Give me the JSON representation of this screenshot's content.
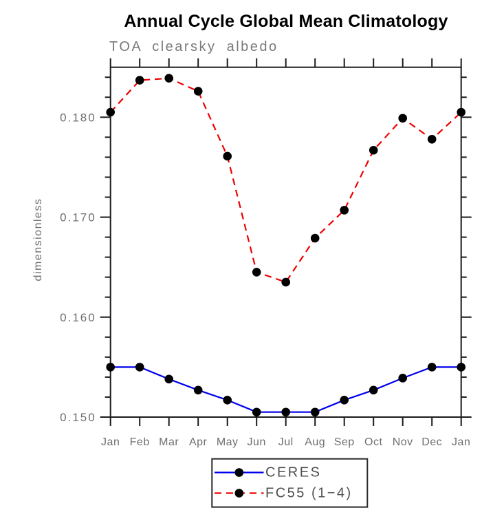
{
  "header": {
    "title": "Annual Cycle Global Mean Climatology",
    "subtitle": "TOA clearsky albedo"
  },
  "chart_data": {
    "type": "line",
    "title": "Annual Cycle Global Mean Climatology",
    "subtitle": "TOA clearsky albedo",
    "xlabel": "",
    "ylabel": "dimensionless",
    "categories": [
      "Jan",
      "Feb",
      "Mar",
      "Apr",
      "May",
      "Jun",
      "Jul",
      "Aug",
      "Sep",
      "Oct",
      "Nov",
      "Dec",
      "Jan"
    ],
    "ylim": [
      0.15,
      0.185
    ],
    "yticks_major": [
      0.15,
      0.16,
      0.17,
      0.18
    ],
    "ytick_labels": [
      "0.150",
      "0.160",
      "0.170",
      "0.180"
    ],
    "yminor_step": 0.002,
    "grid": false,
    "legend_position": "bottom-center",
    "series": [
      {
        "name": "CERES",
        "color": "#0000ee",
        "style": "solid",
        "marker": "circle",
        "marker_color": "#000000",
        "values": [
          0.155,
          0.155,
          0.1538,
          0.1527,
          0.1517,
          0.1505,
          0.1505,
          0.1505,
          0.1517,
          0.1527,
          0.1539,
          0.155,
          0.155
        ]
      },
      {
        "name": "FC55 (1−4)",
        "color": "#ee0000",
        "style": "dashed",
        "marker": "circle",
        "marker_color": "#000000",
        "values": [
          0.1805,
          0.1837,
          0.1839,
          0.1826,
          0.1761,
          0.1645,
          0.1635,
          0.1679,
          0.1707,
          0.1767,
          0.1799,
          0.1778,
          0.1805
        ]
      }
    ]
  },
  "colors": {
    "axis": "#1a1a1a",
    "tick_label": "#6e6e6e",
    "title": "#000000",
    "subtitle": "#7a7a7a",
    "legend_border": "#2b2b2b",
    "legend_text": "#4f4f4f",
    "marker": "#000000"
  }
}
